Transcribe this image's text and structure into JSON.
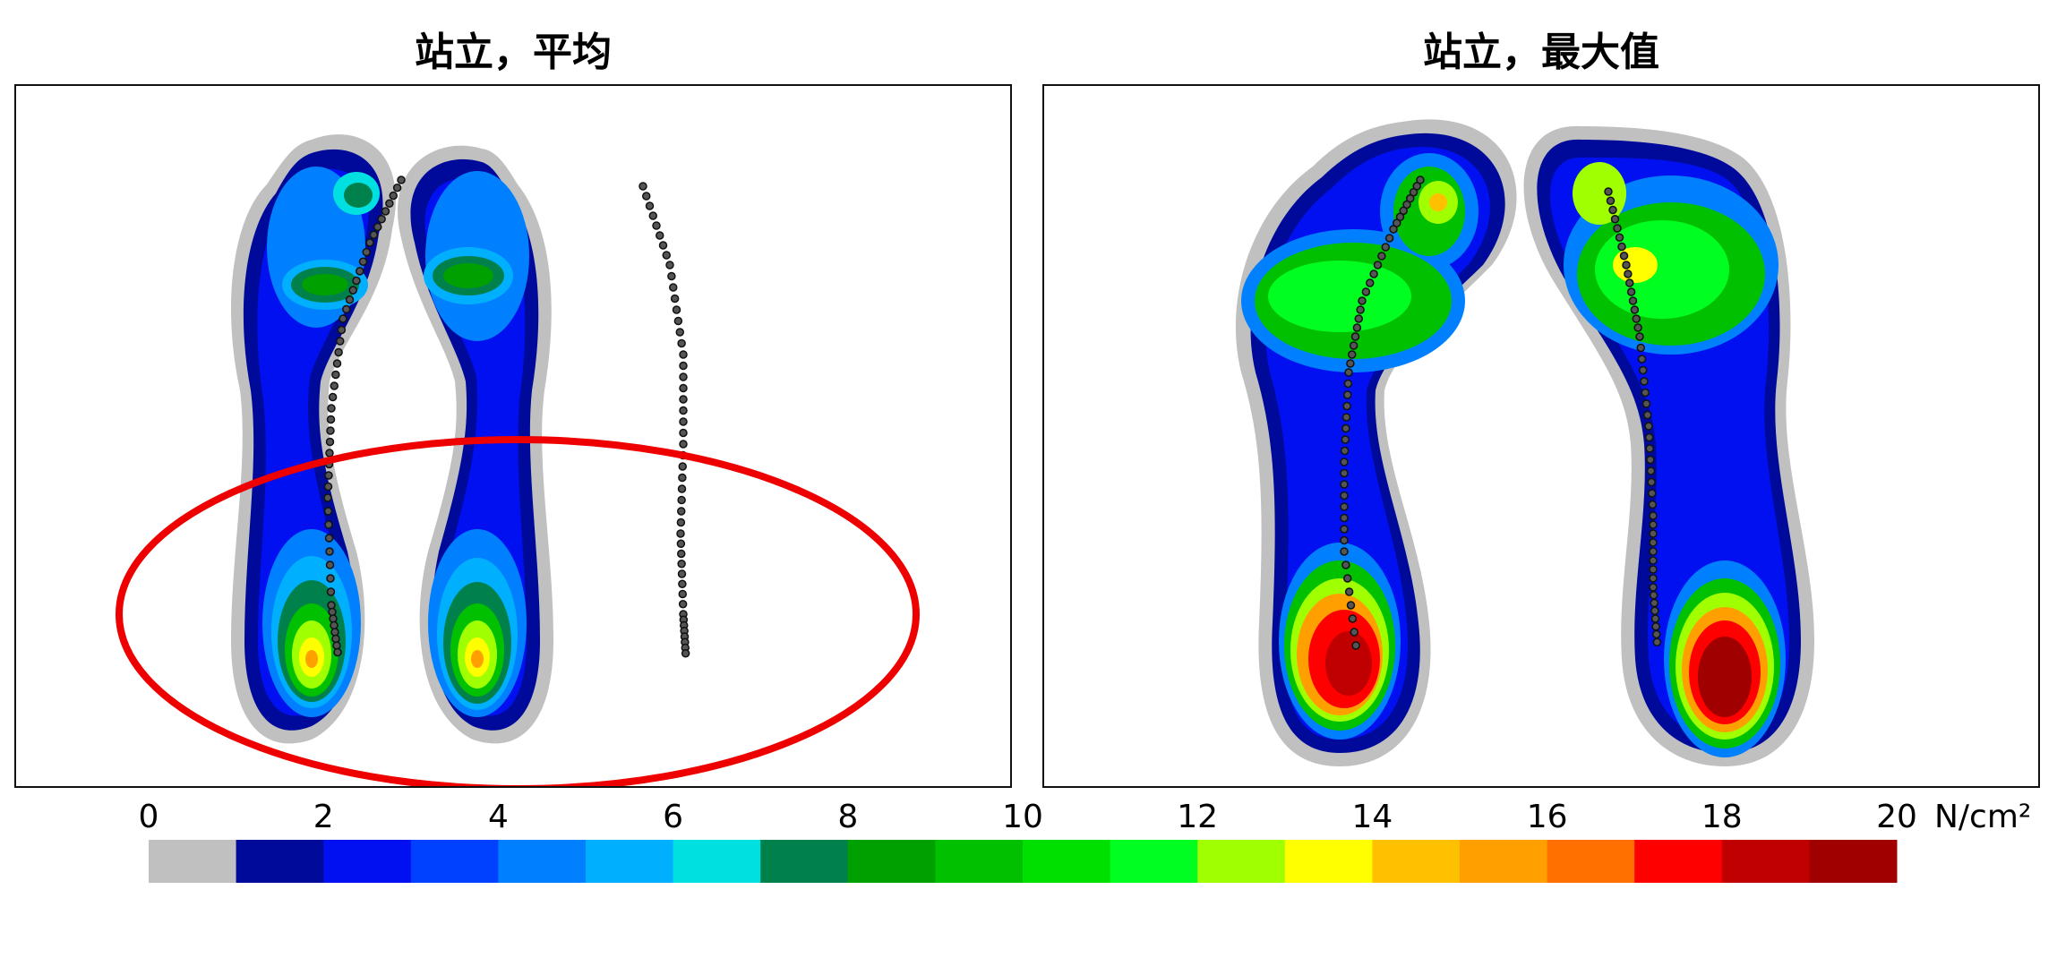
{
  "chart_data": {
    "type": "heatmap",
    "panels": [
      {
        "title": "站立，平均",
        "highlight": "red-ellipse-around-heels"
      },
      {
        "title": "站立，最大值"
      }
    ],
    "colorbar": {
      "min": 0,
      "max": 20,
      "step": 1,
      "tick_values": [
        0,
        2,
        4,
        6,
        8,
        10,
        12,
        14,
        16,
        18,
        20
      ],
      "tick_labels": [
        "0",
        "2",
        "4",
        "6",
        "8",
        "10",
        "12",
        "14",
        "16",
        "18",
        "20"
      ],
      "unit": "N/cm²",
      "colors": [
        "#c0c0c0",
        "#000a9a",
        "#0010f0",
        "#0040ff",
        "#0080ff",
        "#00b0ff",
        "#00e0e0",
        "#00804a",
        "#00a000",
        "#00c000",
        "#00e000",
        "#00ff20",
        "#a0ff00",
        "#ffff00",
        "#ffc000",
        "#ffa000",
        "#ff7000",
        "#ff0000",
        "#c00000",
        "#a00000"
      ]
    }
  }
}
